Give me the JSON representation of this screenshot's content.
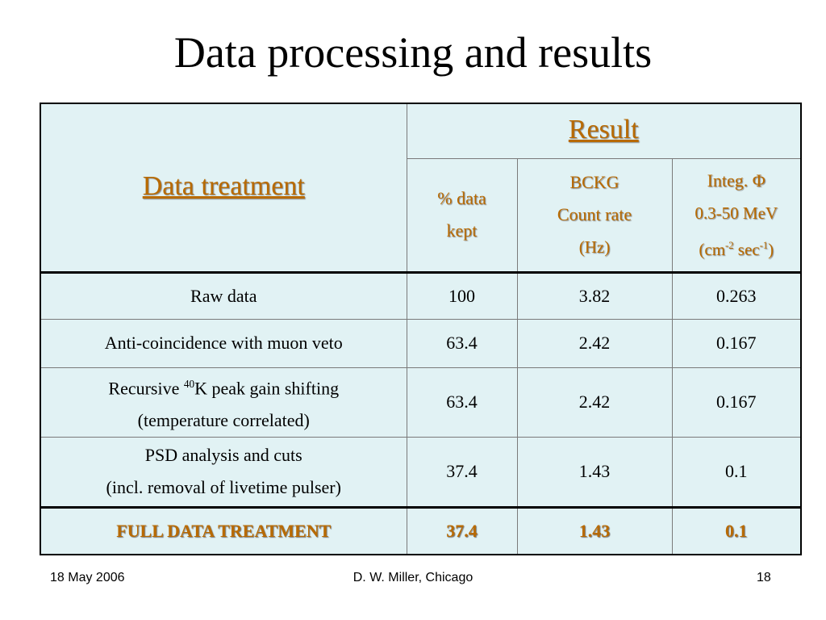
{
  "slide": {
    "title": "Data processing and results"
  },
  "table": {
    "header_data_treatment": "Data treatment",
    "header_result": "Result",
    "col_pct_line1": "% data",
    "col_pct_line2": "kept",
    "col_bckg_line1": "BCKG",
    "col_bckg_line2": "Count rate",
    "col_bckg_line3": "(Hz)",
    "col_integ_line1": "Integ. Φ",
    "col_integ_line2": "0.3-50 MeV",
    "col_integ_line3_a": "(cm",
    "col_integ_line3_sup1": "-2",
    "col_integ_line3_b": " sec",
    "col_integ_line3_sup2": "-1",
    "col_integ_line3_c": ")",
    "rows": [
      {
        "label": "Raw data",
        "pct": "100",
        "bckg": "3.82",
        "integ": "0.263"
      },
      {
        "label": "Anti-coincidence with muon veto",
        "pct": "63.4",
        "bckg": "2.42",
        "integ": "0.167"
      },
      {
        "label_a": "Recursive ",
        "label_sup": "40",
        "label_b": "K peak gain shifting",
        "label_line2": "(temperature correlated)",
        "pct": "63.4",
        "bckg": "2.42",
        "integ": "0.167"
      },
      {
        "label_line1": "PSD analysis and cuts",
        "label_line2": "(incl. removal of livetime pulser)",
        "pct": "37.4",
        "bckg": "1.43",
        "integ": "0.1"
      },
      {
        "label": "FULL DATA TREATMENT",
        "pct": "37.4",
        "bckg": "1.43",
        "integ": "0.1"
      }
    ]
  },
  "footer": {
    "date": "18 May 2006",
    "author": "D. W. Miller, Chicago",
    "page": "18"
  }
}
